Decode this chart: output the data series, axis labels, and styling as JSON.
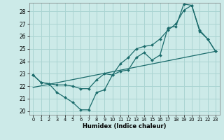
{
  "xlabel": "Humidex (Indice chaleur)",
  "bg_color": "#cceae8",
  "grid_color": "#aad4d2",
  "line_color": "#1a6b6b",
  "xlim": [
    -0.5,
    23.5
  ],
  "ylim": [
    19.7,
    28.7
  ],
  "yticks": [
    20,
    21,
    22,
    23,
    24,
    25,
    26,
    27,
    28
  ],
  "xticks": [
    0,
    1,
    2,
    3,
    4,
    5,
    6,
    7,
    8,
    9,
    10,
    11,
    12,
    13,
    14,
    15,
    16,
    17,
    18,
    19,
    20,
    21,
    22,
    23
  ],
  "series1_x": [
    0,
    1,
    2,
    3,
    4,
    5,
    6,
    7,
    8,
    9,
    10,
    11,
    12,
    13,
    14,
    15,
    16,
    17,
    18,
    19,
    20,
    21,
    22,
    23
  ],
  "series1_y": [
    22.9,
    22.3,
    22.2,
    21.5,
    21.1,
    20.7,
    20.1,
    20.1,
    21.5,
    21.7,
    22.9,
    23.2,
    23.3,
    24.3,
    24.7,
    24.1,
    24.5,
    26.7,
    26.8,
    28.6,
    28.5,
    26.4,
    25.8,
    24.8
  ],
  "series2_x": [
    0,
    1,
    2,
    3,
    4,
    5,
    6,
    7,
    8,
    9,
    10,
    11,
    12,
    13,
    14,
    15,
    16,
    17,
    18,
    19,
    20,
    21,
    22,
    23
  ],
  "series2_y": [
    22.9,
    22.3,
    22.2,
    22.1,
    22.1,
    22.0,
    21.8,
    21.8,
    22.5,
    23.0,
    22.9,
    23.8,
    24.3,
    25.0,
    25.2,
    25.3,
    25.8,
    26.5,
    27.0,
    28.1,
    28.5,
    26.5,
    25.8,
    24.8
  ],
  "series3_x": [
    0,
    23
  ],
  "series3_y": [
    21.9,
    24.8
  ]
}
